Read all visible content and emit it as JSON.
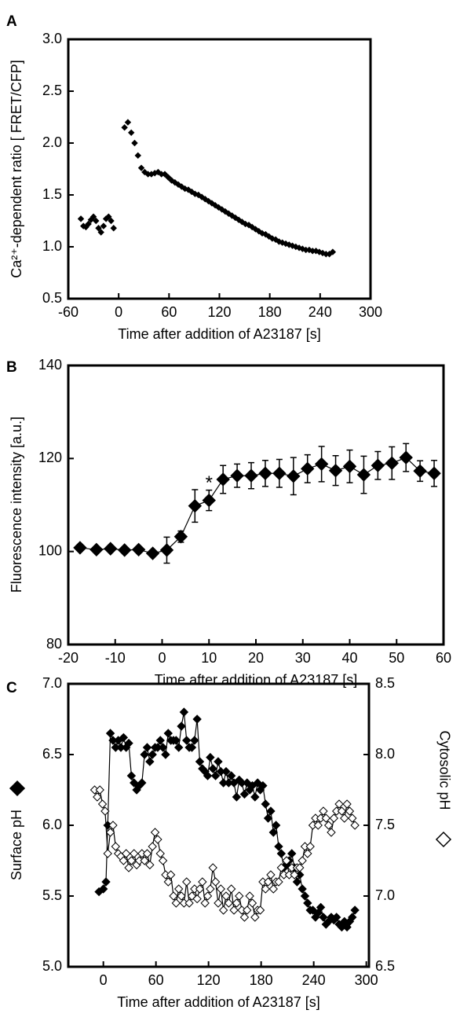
{
  "chart_data": [
    {
      "type": "scatter",
      "panel": "A",
      "xlabel": "Time after addition of A23187 [s]",
      "ylabel": "Ca²⁺-dependent ratio [ FRET/CFP]",
      "xlim": [
        -60,
        300
      ],
      "xticks": [
        -60,
        0,
        60,
        120,
        180,
        240,
        300
      ],
      "ylim": [
        0.5,
        3
      ],
      "yticks": [
        0.5,
        {
          "value": 1,
          "label": "1.0"
        },
        1.5,
        {
          "value": 2,
          "label": "2.0"
        },
        2.5,
        {
          "value": 3,
          "label": "3.0"
        }
      ],
      "series": [
        {
          "color": "#000000",
          "marker": "filled",
          "line": false,
          "x": [
            -45,
            -42,
            -39,
            -36,
            -33,
            -30,
            -27,
            -24,
            -21,
            -18,
            -15,
            -12,
            -9,
            -6,
            7,
            11,
            15,
            19,
            23,
            27,
            31,
            35,
            39,
            43,
            47,
            51,
            55,
            59,
            63,
            67,
            71,
            75,
            79,
            83,
            87,
            91,
            95,
            99,
            103,
            107,
            111,
            115,
            119,
            123,
            127,
            131,
            135,
            139,
            143,
            147,
            151,
            155,
            159,
            163,
            167,
            171,
            175,
            179,
            183,
            187,
            191,
            195,
            199,
            203,
            207,
            211,
            215,
            219,
            223,
            227,
            231,
            235,
            239,
            243,
            247,
            251,
            255
          ],
          "values": [
            1.27,
            1.2,
            1.19,
            1.22,
            1.26,
            1.29,
            1.25,
            1.18,
            1.14,
            1.2,
            1.27,
            1.29,
            1.25,
            1.18,
            2.15,
            2.2,
            2.1,
            2.0,
            1.88,
            1.76,
            1.72,
            1.7,
            1.7,
            1.71,
            1.72,
            1.7,
            1.7,
            1.67,
            1.64,
            1.62,
            1.6,
            1.58,
            1.56,
            1.55,
            1.53,
            1.51,
            1.5,
            1.48,
            1.46,
            1.44,
            1.42,
            1.4,
            1.38,
            1.36,
            1.34,
            1.32,
            1.3,
            1.28,
            1.26,
            1.24,
            1.22,
            1.21,
            1.19,
            1.17,
            1.15,
            1.13,
            1.12,
            1.1,
            1.08,
            1.07,
            1.05,
            1.04,
            1.03,
            1.02,
            1.01,
            1.0,
            0.99,
            0.98,
            0.97,
            0.97,
            0.96,
            0.96,
            0.95,
            0.94,
            0.93,
            0.93,
            0.95
          ]
        }
      ]
    },
    {
      "type": "line",
      "panel": "B",
      "xlabel": "Time after addition of A23187 [s]",
      "ylabel": "Fluorescence intensity [a.u.]",
      "annotation": "*",
      "xlim": [
        -20,
        60
      ],
      "xticks": [
        -20,
        -10,
        0,
        10,
        20,
        30,
        40,
        50,
        60
      ],
      "ylim": [
        80,
        140
      ],
      "yticks": [
        80,
        100,
        120,
        140
      ],
      "series": [
        {
          "color": "#000000",
          "marker": "filled",
          "line": true,
          "x": [
            -17.5,
            -14,
            -11,
            -8,
            -5,
            -2,
            1,
            4,
            7,
            10,
            13,
            16,
            19,
            22,
            25,
            28,
            31,
            34,
            37,
            40,
            43,
            46,
            49,
            52,
            55,
            58
          ],
          "values": [
            100.8,
            100.4,
            100.6,
            100.3,
            100.4,
            99.6,
            100.3,
            103.2,
            109.8,
            111,
            115.5,
            116.3,
            116.3,
            116.8,
            116.8,
            116.2,
            117.8,
            118.8,
            117.4,
            118.3,
            116.5,
            118.5,
            119,
            120.2,
            117.3,
            116.8
          ],
          "errors": [
            0.5,
            0.5,
            0.5,
            0.5,
            0.5,
            0.5,
            2.8,
            1.2,
            3.5,
            2.2,
            3,
            2.5,
            2.8,
            2.8,
            3,
            4,
            3,
            3.8,
            3.2,
            3.5,
            4,
            3,
            3.5,
            3,
            2.2,
            2.8
          ]
        }
      ]
    },
    {
      "type": "line",
      "panel": "C",
      "xlabel": "Time after addition of A23187 [s]",
      "ylabel": "Surface pH",
      "y2label": "Cytosolic pH",
      "xlim": [
        -40,
        303
      ],
      "xticks": [
        0,
        60,
        120,
        180,
        240,
        300
      ],
      "ylim": [
        5,
        7
      ],
      "yticks": [
        {
          "value": 5,
          "label": "5.0"
        },
        5.5,
        {
          "value": 6,
          "label": "6.0"
        },
        6.5,
        {
          "value": 7,
          "label": "7.0"
        }
      ],
      "y2lim": [
        6.5,
        8.5
      ],
      "y2ticks": [
        6.5,
        {
          "value": 7,
          "label": "7.0"
        },
        7.5,
        {
          "value": 8,
          "label": "8.0"
        },
        8.5
      ],
      "series": [
        {
          "color": "#000000",
          "marker": "filled",
          "line": true,
          "axis": "y",
          "x": [
            -5,
            0,
            3,
            5,
            8,
            11,
            14,
            17,
            20,
            23,
            26,
            29,
            32,
            35,
            38,
            41,
            44,
            47,
            50,
            53,
            56,
            59,
            62,
            65,
            68,
            71,
            74,
            77,
            80,
            83,
            86,
            89,
            92,
            95,
            98,
            101,
            104,
            107,
            110,
            113,
            116,
            119,
            122,
            125,
            128,
            131,
            134,
            137,
            140,
            143,
            146,
            149,
            152,
            155,
            158,
            161,
            164,
            167,
            170,
            173,
            176,
            179,
            182,
            185,
            188,
            191,
            194,
            197,
            200,
            203,
            206,
            209,
            212,
            215,
            218,
            221,
            224,
            227,
            230,
            233,
            236,
            239,
            242,
            245,
            248,
            251,
            254,
            257,
            260,
            263,
            266,
            269,
            272,
            275,
            278,
            281,
            284,
            287
          ],
          "values": [
            5.53,
            5.55,
            5.6,
            6.0,
            6.65,
            6.6,
            6.55,
            6.6,
            6.55,
            6.62,
            6.55,
            6.58,
            6.35,
            6.3,
            6.25,
            6.28,
            6.3,
            6.5,
            6.55,
            6.45,
            6.5,
            6.55,
            6.55,
            6.6,
            6.55,
            6.5,
            6.65,
            6.6,
            6.6,
            6.6,
            6.55,
            6.7,
            6.8,
            6.6,
            6.55,
            6.55,
            6.6,
            6.75,
            6.45,
            6.4,
            6.38,
            6.35,
            6.48,
            6.4,
            6.35,
            6.45,
            6.38,
            6.3,
            6.38,
            6.3,
            6.35,
            6.3,
            6.2,
            6.32,
            6.3,
            6.22,
            6.3,
            6.25,
            6.28,
            6.2,
            6.3,
            6.25,
            6.28,
            6.15,
            6.05,
            6.1,
            5.95,
            6.0,
            5.85,
            5.8,
            5.7,
            5.72,
            5.75,
            5.8,
            5.7,
            5.6,
            5.65,
            5.55,
            5.5,
            5.45,
            5.4,
            5.4,
            5.35,
            5.38,
            5.42,
            5.35,
            5.3,
            5.32,
            5.35,
            5.33,
            5.35,
            5.3,
            5.28,
            5.32,
            5.28,
            5.32,
            5.35,
            5.4
          ]
        },
        {
          "color": "#000000",
          "marker": "open",
          "line": true,
          "axis": "y2",
          "x": [
            -10,
            -7,
            -4,
            -1,
            2,
            5,
            8,
            11,
            14,
            17,
            20,
            23,
            26,
            29,
            32,
            35,
            38,
            41,
            44,
            47,
            50,
            53,
            56,
            59,
            62,
            65,
            68,
            71,
            74,
            77,
            80,
            83,
            86,
            89,
            92,
            95,
            98,
            101,
            104,
            107,
            110,
            113,
            116,
            119,
            122,
            125,
            128,
            131,
            134,
            137,
            140,
            143,
            146,
            149,
            152,
            155,
            158,
            161,
            164,
            167,
            170,
            173,
            176,
            179,
            182,
            185,
            188,
            191,
            194,
            197,
            200,
            203,
            206,
            209,
            212,
            215,
            218,
            221,
            224,
            227,
            230,
            233,
            236,
            239,
            242,
            245,
            248,
            251,
            254,
            257,
            260,
            263,
            266,
            269,
            272,
            275,
            278,
            281,
            284,
            287
          ],
          "values": [
            7.75,
            7.7,
            7.75,
            7.65,
            7.6,
            7.3,
            7.45,
            7.5,
            7.35,
            7.3,
            7.28,
            7.25,
            7.3,
            7.2,
            7.25,
            7.3,
            7.22,
            7.25,
            7.3,
            7.25,
            7.3,
            7.22,
            7.35,
            7.45,
            7.4,
            7.3,
            7.25,
            7.15,
            7.1,
            7.15,
            7.0,
            6.95,
            7.05,
            7.0,
            6.95,
            7.1,
            6.95,
            7.0,
            7.05,
            6.98,
            7.05,
            7.1,
            6.95,
            7.0,
            7.05,
            7.2,
            7.1,
            6.95,
            7.05,
            6.9,
            7.0,
            6.95,
            7.05,
            6.9,
            6.95,
            7.0,
            6.9,
            6.85,
            6.9,
            7.0,
            6.95,
            6.85,
            6.9,
            6.9,
            7.1,
            7.05,
            7.1,
            7.15,
            7.05,
            7.1,
            7.1,
            7.2,
            7.15,
            7.25,
            7.15,
            7.2,
            7.15,
            7.2,
            7.2,
            7.25,
            7.35,
            7.3,
            7.35,
            7.5,
            7.55,
            7.5,
            7.55,
            7.6,
            7.55,
            7.5,
            7.45,
            7.55,
            7.6,
            7.65,
            7.6,
            7.55,
            7.65,
            7.6,
            7.55,
            7.5
          ]
        }
      ]
    }
  ]
}
